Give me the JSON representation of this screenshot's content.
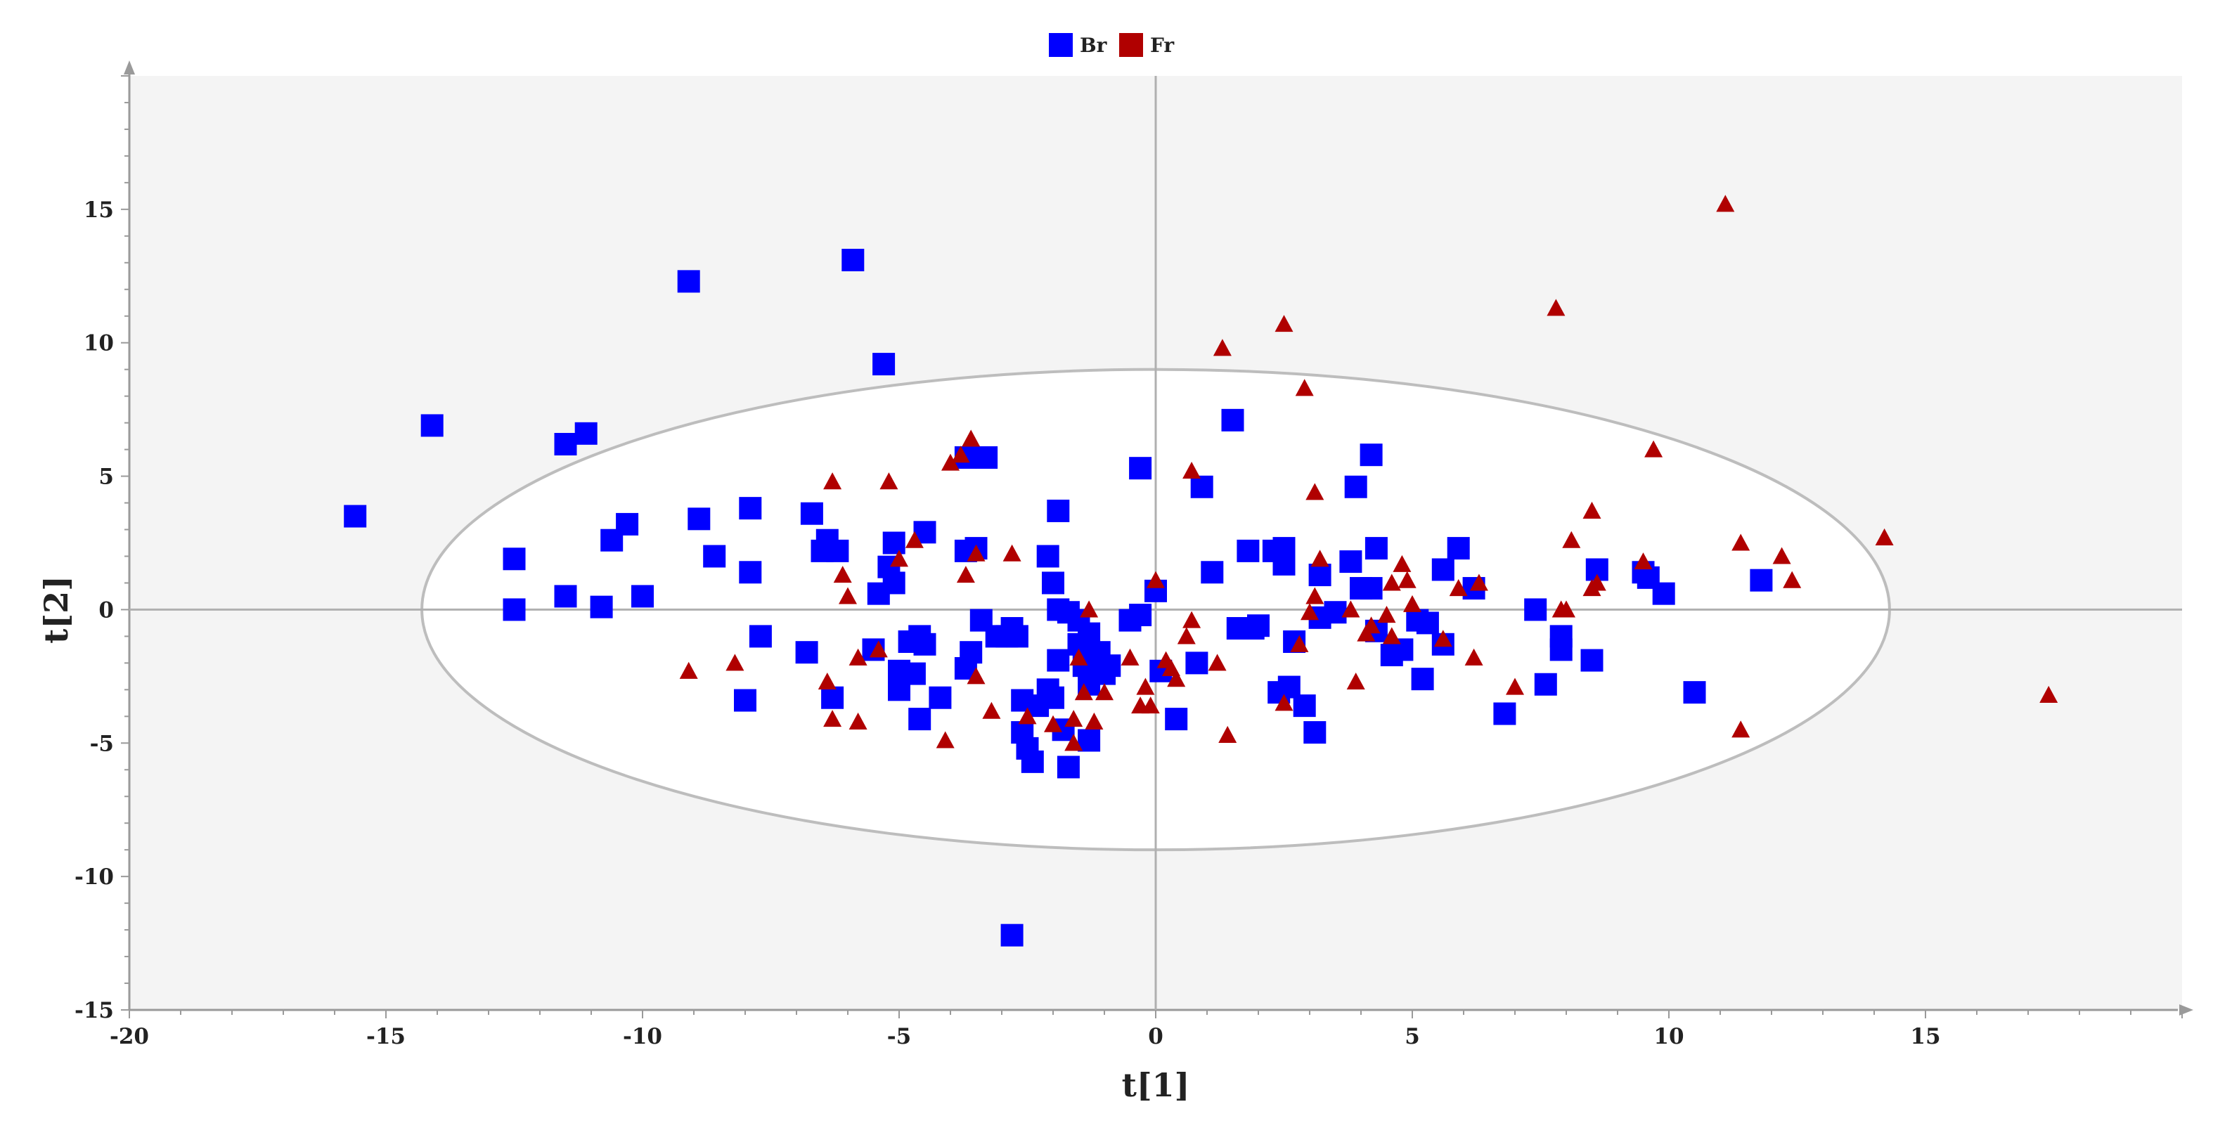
{
  "chart_data": {
    "type": "scatter",
    "xlabel": "t[1]",
    "ylabel": "t[2]",
    "xlim": [
      -20,
      20
    ],
    "ylim": [
      -15,
      20
    ],
    "x_ticks": [
      -20,
      -15,
      -10,
      -5,
      0,
      5,
      10,
      15
    ],
    "y_ticks": [
      -15,
      -10,
      -5,
      0,
      5,
      10,
      15
    ],
    "grid": false,
    "background": "#f4f4f4",
    "legend": {
      "placement": "top-center"
    },
    "ellipse": {
      "center": [
        0,
        0
      ],
      "rx": 14.3,
      "ry": 9.0,
      "fill": "#ffffff",
      "stroke": "#bdbdbd"
    },
    "series": [
      {
        "name": "Br",
        "marker": "square",
        "color": "#0000ff",
        "points": [
          [
            -15.6,
            3.5
          ],
          [
            -14.1,
            6.9
          ],
          [
            -11.5,
            6.2
          ],
          [
            -11.1,
            6.6
          ],
          [
            -12.5,
            1.9
          ],
          [
            -12.5,
            0.0
          ],
          [
            -11.5,
            0.5
          ],
          [
            -10.8,
            0.1
          ],
          [
            -10.6,
            2.6
          ],
          [
            -10.3,
            3.2
          ],
          [
            -10.0,
            0.5
          ],
          [
            -9.1,
            12.3
          ],
          [
            -8.9,
            3.4
          ],
          [
            -8.6,
            2.0
          ],
          [
            -7.9,
            3.8
          ],
          [
            -7.9,
            1.4
          ],
          [
            -7.7,
            -1.0
          ],
          [
            -8.0,
            -3.4
          ],
          [
            -6.7,
            3.6
          ],
          [
            -6.8,
            -1.6
          ],
          [
            -6.4,
            2.6
          ],
          [
            -6.5,
            2.2
          ],
          [
            -6.2,
            2.2
          ],
          [
            -6.3,
            -3.3
          ],
          [
            -5.9,
            13.1
          ],
          [
            -5.3,
            9.2
          ],
          [
            -5.1,
            2.5
          ],
          [
            -5.2,
            1.6
          ],
          [
            -5.1,
            1.0
          ],
          [
            -5.4,
            0.6
          ],
          [
            -5.5,
            -1.5
          ],
          [
            -5.0,
            -2.3
          ],
          [
            -5.0,
            -3.0
          ],
          [
            -4.7,
            -2.4
          ],
          [
            -4.8,
            -1.2
          ],
          [
            -4.6,
            -1.0
          ],
          [
            -4.5,
            -1.3
          ],
          [
            -4.5,
            2.9
          ],
          [
            -4.6,
            -4.1
          ],
          [
            -4.2,
            -3.3
          ],
          [
            -3.7,
            5.7
          ],
          [
            -3.3,
            5.7
          ],
          [
            -3.7,
            2.2
          ],
          [
            -3.5,
            2.3
          ],
          [
            -3.6,
            -1.6
          ],
          [
            -3.7,
            -2.2
          ],
          [
            -3.4,
            -0.4
          ],
          [
            -3.1,
            -1.0
          ],
          [
            -2.9,
            -1.0
          ],
          [
            -2.8,
            -0.7
          ],
          [
            -2.7,
            -1.0
          ],
          [
            -2.6,
            -3.4
          ],
          [
            -2.6,
            -4.6
          ],
          [
            -2.5,
            -5.2
          ],
          [
            -2.4,
            -5.7
          ],
          [
            -2.3,
            -3.6
          ],
          [
            -2.8,
            -12.2
          ],
          [
            -2.1,
            2.0
          ],
          [
            -2.1,
            -3.0
          ],
          [
            -2.0,
            1.0
          ],
          [
            -1.9,
            3.7
          ],
          [
            -1.9,
            0.0
          ],
          [
            -1.9,
            -1.9
          ],
          [
            -2.0,
            -3.3
          ],
          [
            -1.8,
            -4.5
          ],
          [
            -1.7,
            -5.9
          ],
          [
            -1.7,
            -0.1
          ],
          [
            -1.5,
            -0.4
          ],
          [
            -1.5,
            -1.3
          ],
          [
            -1.4,
            -2.1
          ],
          [
            -1.3,
            -4.9
          ],
          [
            -1.3,
            -0.9
          ],
          [
            -1.3,
            -2.8
          ],
          [
            -1.1,
            -1.6
          ],
          [
            -1.0,
            -2.4
          ],
          [
            -1.1,
            -2.3
          ],
          [
            -0.9,
            -2.1
          ],
          [
            -0.5,
            -0.4
          ],
          [
            -0.3,
            -0.2
          ],
          [
            -0.3,
            5.3
          ],
          [
            0.0,
            0.7
          ],
          [
            0.1,
            -2.3
          ],
          [
            0.4,
            -4.1
          ],
          [
            0.8,
            -2.0
          ],
          [
            0.9,
            4.6
          ],
          [
            1.1,
            1.4
          ],
          [
            1.5,
            7.1
          ],
          [
            1.6,
            -0.7
          ],
          [
            1.8,
            2.2
          ],
          [
            1.9,
            -0.7
          ],
          [
            2.0,
            -0.6
          ],
          [
            2.3,
            2.2
          ],
          [
            2.4,
            -3.1
          ],
          [
            2.5,
            1.7
          ],
          [
            2.5,
            2.3
          ],
          [
            2.7,
            -1.2
          ],
          [
            2.6,
            -2.9
          ],
          [
            2.9,
            -3.6
          ],
          [
            3.1,
            -4.6
          ],
          [
            3.2,
            1.3
          ],
          [
            3.2,
            -0.3
          ],
          [
            3.5,
            -0.1
          ],
          [
            3.8,
            1.8
          ],
          [
            3.9,
            4.6
          ],
          [
            4.0,
            0.8
          ],
          [
            4.2,
            5.8
          ],
          [
            4.3,
            2.3
          ],
          [
            4.2,
            0.8
          ],
          [
            4.3,
            -0.8
          ],
          [
            4.6,
            -1.7
          ],
          [
            4.8,
            -1.5
          ],
          [
            5.1,
            -0.4
          ],
          [
            5.2,
            -2.6
          ],
          [
            5.3,
            -0.5
          ],
          [
            5.6,
            -1.3
          ],
          [
            5.6,
            1.5
          ],
          [
            5.9,
            2.3
          ],
          [
            6.2,
            0.8
          ],
          [
            6.8,
            -3.9
          ],
          [
            7.4,
            0.0
          ],
          [
            7.6,
            -2.8
          ],
          [
            7.9,
            -1.0
          ],
          [
            7.9,
            -1.5
          ],
          [
            8.5,
            -1.9
          ],
          [
            8.6,
            1.5
          ],
          [
            9.5,
            1.4
          ],
          [
            9.6,
            1.2
          ],
          [
            9.9,
            0.6
          ],
          [
            10.5,
            -3.1
          ],
          [
            11.8,
            1.1
          ]
        ]
      },
      {
        "name": "Fr",
        "marker": "triangle",
        "color": "#b00000",
        "points": [
          [
            -9.1,
            -2.3
          ],
          [
            -8.2,
            -2.0
          ],
          [
            -6.3,
            4.8
          ],
          [
            -6.1,
            1.3
          ],
          [
            -6.0,
            0.5
          ],
          [
            -6.4,
            -2.7
          ],
          [
            -6.3,
            -4.1
          ],
          [
            -5.8,
            -4.2
          ],
          [
            -5.8,
            -1.8
          ],
          [
            -5.4,
            -1.5
          ],
          [
            -5.2,
            4.8
          ],
          [
            -5.0,
            1.9
          ],
          [
            -4.7,
            2.6
          ],
          [
            -4.1,
            -4.9
          ],
          [
            -4.0,
            5.5
          ],
          [
            -3.8,
            5.8
          ],
          [
            -3.6,
            6.4
          ],
          [
            -3.5,
            2.1
          ],
          [
            -3.7,
            1.3
          ],
          [
            -3.5,
            -2.5
          ],
          [
            -3.2,
            -3.8
          ],
          [
            -2.8,
            2.1
          ],
          [
            -2.5,
            -4.0
          ],
          [
            -2.0,
            -4.3
          ],
          [
            -1.6,
            -4.1
          ],
          [
            -1.6,
            -5.0
          ],
          [
            -1.5,
            -1.8
          ],
          [
            -1.4,
            -3.1
          ],
          [
            -1.3,
            0.0
          ],
          [
            -1.2,
            -4.2
          ],
          [
            -1.0,
            -3.1
          ],
          [
            -0.5,
            -1.8
          ],
          [
            -0.3,
            -3.6
          ],
          [
            -0.2,
            -2.9
          ],
          [
            -0.1,
            -3.6
          ],
          [
            0.0,
            1.1
          ],
          [
            0.2,
            -1.9
          ],
          [
            0.3,
            -2.2
          ],
          [
            0.4,
            -2.6
          ],
          [
            0.6,
            -1.0
          ],
          [
            0.7,
            -0.4
          ],
          [
            0.7,
            5.2
          ],
          [
            1.2,
            -2.0
          ],
          [
            1.3,
            9.8
          ],
          [
            1.4,
            -4.7
          ],
          [
            2.5,
            10.7
          ],
          [
            2.5,
            -3.5
          ],
          [
            2.8,
            -1.3
          ],
          [
            2.9,
            8.3
          ],
          [
            3.0,
            -0.1
          ],
          [
            3.1,
            4.4
          ],
          [
            3.1,
            0.5
          ],
          [
            3.2,
            1.9
          ],
          [
            3.8,
            0.0
          ],
          [
            3.9,
            -2.7
          ],
          [
            4.1,
            -0.9
          ],
          [
            4.2,
            -0.6
          ],
          [
            4.5,
            -0.2
          ],
          [
            4.6,
            1.0
          ],
          [
            4.6,
            -1.0
          ],
          [
            4.8,
            1.7
          ],
          [
            4.9,
            1.1
          ],
          [
            5.0,
            0.2
          ],
          [
            5.6,
            -1.1
          ],
          [
            5.9,
            0.8
          ],
          [
            6.2,
            -1.8
          ],
          [
            6.3,
            1.0
          ],
          [
            7.0,
            -2.9
          ],
          [
            7.8,
            11.3
          ],
          [
            7.9,
            0.0
          ],
          [
            8.0,
            0.0
          ],
          [
            8.1,
            2.6
          ],
          [
            8.5,
            0.8
          ],
          [
            8.5,
            3.7
          ],
          [
            8.6,
            1.0
          ],
          [
            9.5,
            1.8
          ],
          [
            9.7,
            6.0
          ],
          [
            11.1,
            15.2
          ],
          [
            11.4,
            2.5
          ],
          [
            11.4,
            -4.5
          ],
          [
            12.2,
            2.0
          ],
          [
            12.4,
            1.1
          ],
          [
            14.2,
            2.7
          ],
          [
            17.4,
            -3.2
          ]
        ]
      }
    ]
  }
}
